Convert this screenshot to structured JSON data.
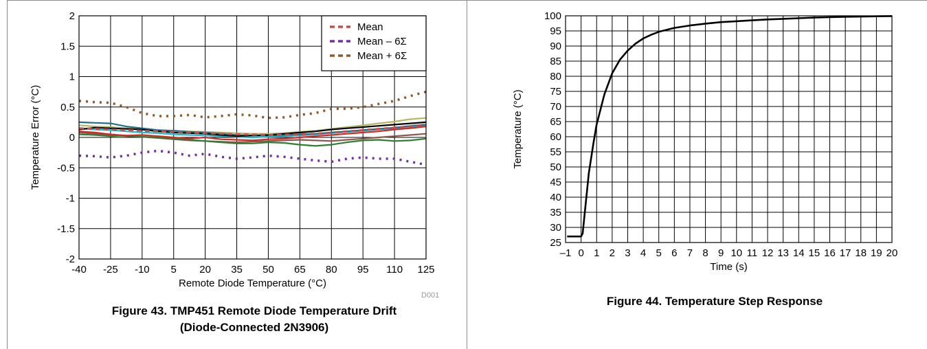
{
  "figures": {
    "left_caption": "Figure 43. TMP451 Remote Diode Temperature Drift",
    "left_caption_line2": "(Diode-Connected 2N3906)",
    "left_code": "D001",
    "right_caption": "Figure 44. Temperature Step Response"
  },
  "chart_data": [
    {
      "type": "line",
      "title": "",
      "xlabel": "Remote Diode Temperature (°C)",
      "ylabel": "Temperature Error (°C)",
      "xlim": [
        -40,
        125
      ],
      "ylim": [
        -2,
        2
      ],
      "xticks": [
        -40,
        -25,
        -10,
        5,
        20,
        35,
        50,
        65,
        80,
        95,
        110,
        125
      ],
      "xtick_labels": [
        "-40",
        "-25",
        "-10",
        "5",
        "20",
        "35",
        "50",
        "65",
        "80",
        "95",
        "110",
        "125"
      ],
      "yticks": [
        -2,
        -1.5,
        -1,
        -0.5,
        0,
        0.5,
        1,
        1.5,
        2
      ],
      "ytick_labels": [
        "-2",
        "-1.5",
        "-1",
        "-0.5",
        "0",
        "0.5",
        "1",
        "1.5",
        "2"
      ],
      "grid": true,
      "legend_position": "top-right",
      "x": [
        -40,
        -32.5,
        -25,
        -17.5,
        -10,
        -2.5,
        5,
        12.5,
        20,
        27.5,
        35,
        42.5,
        50,
        57.5,
        65,
        72.5,
        80,
        87.5,
        95,
        102.5,
        110,
        117.5,
        125
      ],
      "series": [
        {
          "name": "Mean",
          "style": "dashed",
          "color": "#c0504d",
          "values": [
            0.15,
            0.14,
            0.13,
            0.12,
            0.11,
            0.1,
            0.09,
            0.08,
            0.07,
            0.06,
            0.05,
            0.045,
            0.04,
            0.045,
            0.05,
            0.06,
            0.08,
            0.1,
            0.12,
            0.14,
            0.16,
            0.18,
            0.2
          ]
        },
        {
          "name": "Mean – 6Σ",
          "style": "dotted",
          "color": "#7030a0",
          "values": [
            -0.3,
            -0.31,
            -0.33,
            -0.3,
            -0.25,
            -0.22,
            -0.25,
            -0.3,
            -0.27,
            -0.32,
            -0.35,
            -0.33,
            -0.3,
            -0.32,
            -0.35,
            -0.38,
            -0.4,
            -0.35,
            -0.33,
            -0.35,
            -0.35,
            -0.4,
            -0.45
          ]
        },
        {
          "name": "Mean + 6Σ",
          "style": "dotted",
          "color": "#8c5a2b",
          "values": [
            0.6,
            0.58,
            0.57,
            0.5,
            0.4,
            0.35,
            0.35,
            0.37,
            0.33,
            0.35,
            0.38,
            0.36,
            0.32,
            0.33,
            0.37,
            0.4,
            0.47,
            0.47,
            0.5,
            0.55,
            0.6,
            0.68,
            0.75
          ]
        },
        {
          "name": "",
          "style": "solid",
          "color": "#000000",
          "values": [
            0.13,
            0.16,
            0.15,
            0.14,
            0.13,
            0.1,
            0.08,
            0.07,
            0.06,
            0.04,
            0.02,
            0.03,
            0.04,
            0.06,
            0.08,
            0.1,
            0.13,
            0.15,
            0.17,
            0.19,
            0.21,
            0.23,
            0.25
          ]
        },
        {
          "name": "",
          "style": "solid",
          "color": "#1f6f8b",
          "values": [
            0.25,
            0.24,
            0.23,
            0.18,
            0.15,
            0.12,
            0.11,
            0.09,
            0.08,
            0.06,
            0.04,
            0.03,
            0.03,
            0.04,
            0.05,
            0.06,
            0.08,
            0.1,
            0.12,
            0.14,
            0.16,
            0.19,
            0.21
          ]
        },
        {
          "name": "",
          "style": "solid",
          "color": "#d62728",
          "values": [
            0.1,
            0.08,
            0.05,
            0.03,
            0.04,
            0.02,
            0.0,
            -0.02,
            0.0,
            -0.03,
            -0.04,
            -0.05,
            -0.03,
            -0.02,
            0.0,
            0.02,
            0.04,
            0.06,
            0.08,
            0.1,
            0.13,
            0.15,
            0.18
          ]
        },
        {
          "name": "",
          "style": "solid",
          "color": "#2e7d32",
          "values": [
            0.05,
            0.04,
            0.02,
            0.03,
            0.01,
            0.0,
            -0.02,
            -0.04,
            -0.06,
            -0.08,
            -0.1,
            -0.1,
            -0.08,
            -0.09,
            -0.12,
            -0.14,
            -0.12,
            -0.08,
            -0.05,
            -0.04,
            -0.06,
            -0.05,
            -0.02
          ]
        },
        {
          "name": "",
          "style": "solid",
          "color": "#b5b562",
          "values": [
            0.2,
            0.18,
            0.17,
            0.15,
            0.14,
            0.12,
            0.11,
            0.1,
            0.09,
            0.08,
            0.07,
            0.06,
            0.06,
            0.07,
            0.09,
            0.11,
            0.14,
            0.17,
            0.2,
            0.23,
            0.26,
            0.3,
            0.32
          ]
        },
        {
          "name": "",
          "style": "solid",
          "color": "#8c564b",
          "values": [
            0.08,
            0.06,
            0.04,
            0.02,
            0.01,
            -0.01,
            -0.03,
            -0.05,
            -0.06,
            -0.07,
            -0.08,
            -0.07,
            -0.06,
            -0.05,
            -0.04,
            -0.05,
            -0.06,
            -0.04,
            -0.02,
            0.0,
            0.02,
            0.04,
            0.06
          ]
        },
        {
          "name": "",
          "style": "solid",
          "color": "#17becf",
          "values": [
            0.15,
            0.13,
            0.12,
            0.1,
            0.08,
            0.07,
            0.05,
            0.04,
            0.03,
            0.02,
            0.01,
            0.0,
            0.01,
            0.02,
            0.03,
            0.05,
            0.07,
            0.09,
            0.11,
            0.13,
            0.15,
            0.17,
            0.19
          ]
        }
      ]
    },
    {
      "type": "line",
      "title": "",
      "xlabel": "Time (s)",
      "ylabel": "Temperature (°C)",
      "xlim": [
        -1,
        20
      ],
      "ylim": [
        25,
        100
      ],
      "xticks": [
        -1,
        0,
        1,
        2,
        3,
        4,
        5,
        6,
        7,
        8,
        9,
        10,
        11,
        12,
        13,
        14,
        15,
        16,
        17,
        18,
        19,
        20
      ],
      "xtick_labels": [
        "–1",
        "0",
        "1",
        "2",
        "3",
        "4",
        "5",
        "6",
        "7",
        "8",
        "9",
        "10",
        "11",
        "12",
        "13",
        "14",
        "15",
        "16",
        "17",
        "18",
        "19",
        "20"
      ],
      "yticks": [
        25,
        30,
        35,
        40,
        45,
        50,
        55,
        60,
        65,
        70,
        75,
        80,
        85,
        90,
        95,
        100
      ],
      "ytick_labels": [
        "25",
        "30",
        "35",
        "40",
        "45",
        "50",
        "55",
        "60",
        "65",
        "70",
        "75",
        "80",
        "85",
        "90",
        "95",
        "100"
      ],
      "grid": true,
      "series": [
        {
          "name": "",
          "color": "#000000",
          "x": [
            -0.9,
            0,
            0.1,
            0.3,
            0.5,
            0.8,
            1.0,
            1.5,
            2,
            2.5,
            3,
            3.5,
            4,
            4.5,
            5,
            6,
            7,
            8,
            9,
            10,
            11,
            12,
            13,
            14,
            15,
            16,
            17,
            18,
            19,
            20
          ],
          "values": [
            27,
            27,
            28,
            38,
            48,
            58,
            64,
            74,
            81,
            85.5,
            88.5,
            90.8,
            92.5,
            93.7,
            94.7,
            96,
            96.8,
            97.4,
            97.9,
            98.2,
            98.5,
            98.8,
            99.0,
            99.2,
            99.4,
            99.55,
            99.65,
            99.75,
            99.85,
            99.9
          ]
        }
      ]
    }
  ]
}
